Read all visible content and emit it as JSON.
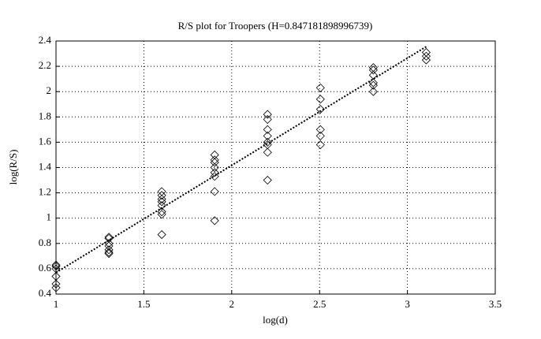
{
  "chart_data": {
    "type": "scatter",
    "title": "R/S plot for Troopers (H=0.847181898996739)",
    "x_label": "log(d)",
    "y_label": "log(R/S)",
    "x": [
      1,
      1,
      1,
      1,
      1,
      1,
      1.301,
      1.301,
      1.301,
      1.301,
      1.301,
      1.301,
      1.301,
      1.602,
      1.602,
      1.602,
      1.602,
      1.602,
      1.602,
      1.602,
      1.602,
      1.903,
      1.903,
      1.903,
      1.903,
      1.903,
      1.903,
      1.903,
      1.903,
      2.204,
      2.204,
      2.204,
      2.204,
      2.204,
      2.204,
      2.204,
      2.204,
      2.505,
      2.505,
      2.505,
      2.505,
      2.505,
      2.505,
      2.806,
      2.806,
      2.806,
      2.806,
      2.806,
      2.806,
      3.107,
      3.107,
      3.107
    ],
    "y": [
      0.63,
      0.62,
      0.6,
      0.54,
      0.48,
      0.45,
      0.85,
      0.84,
      0.8,
      0.78,
      0.75,
      0.73,
      0.72,
      1.21,
      1.18,
      1.15,
      1.13,
      1.1,
      1.05,
      1.03,
      0.87,
      1.5,
      1.46,
      1.44,
      1.4,
      1.36,
      1.33,
      1.21,
      0.98,
      1.82,
      1.78,
      1.7,
      1.65,
      1.6,
      1.58,
      1.52,
      1.3,
      2.03,
      1.94,
      1.86,
      1.7,
      1.65,
      1.58,
      2.19,
      2.17,
      2.13,
      2.07,
      2.05,
      2.0,
      2.31,
      2.28,
      2.25
    ],
    "fit_line": {
      "x": [
        1,
        3.107
      ],
      "y": [
        0.57,
        2.355
      ]
    },
    "xlim": [
      1,
      3.5
    ],
    "ylim": [
      0.4,
      2.4
    ],
    "xticks": [
      1,
      1.5,
      2,
      2.5,
      3,
      3.5
    ],
    "yticks": [
      0.4,
      0.6,
      0.8,
      1,
      1.2,
      1.4,
      1.6,
      1.8,
      2,
      2.2,
      2.4
    ],
    "grid": true
  }
}
